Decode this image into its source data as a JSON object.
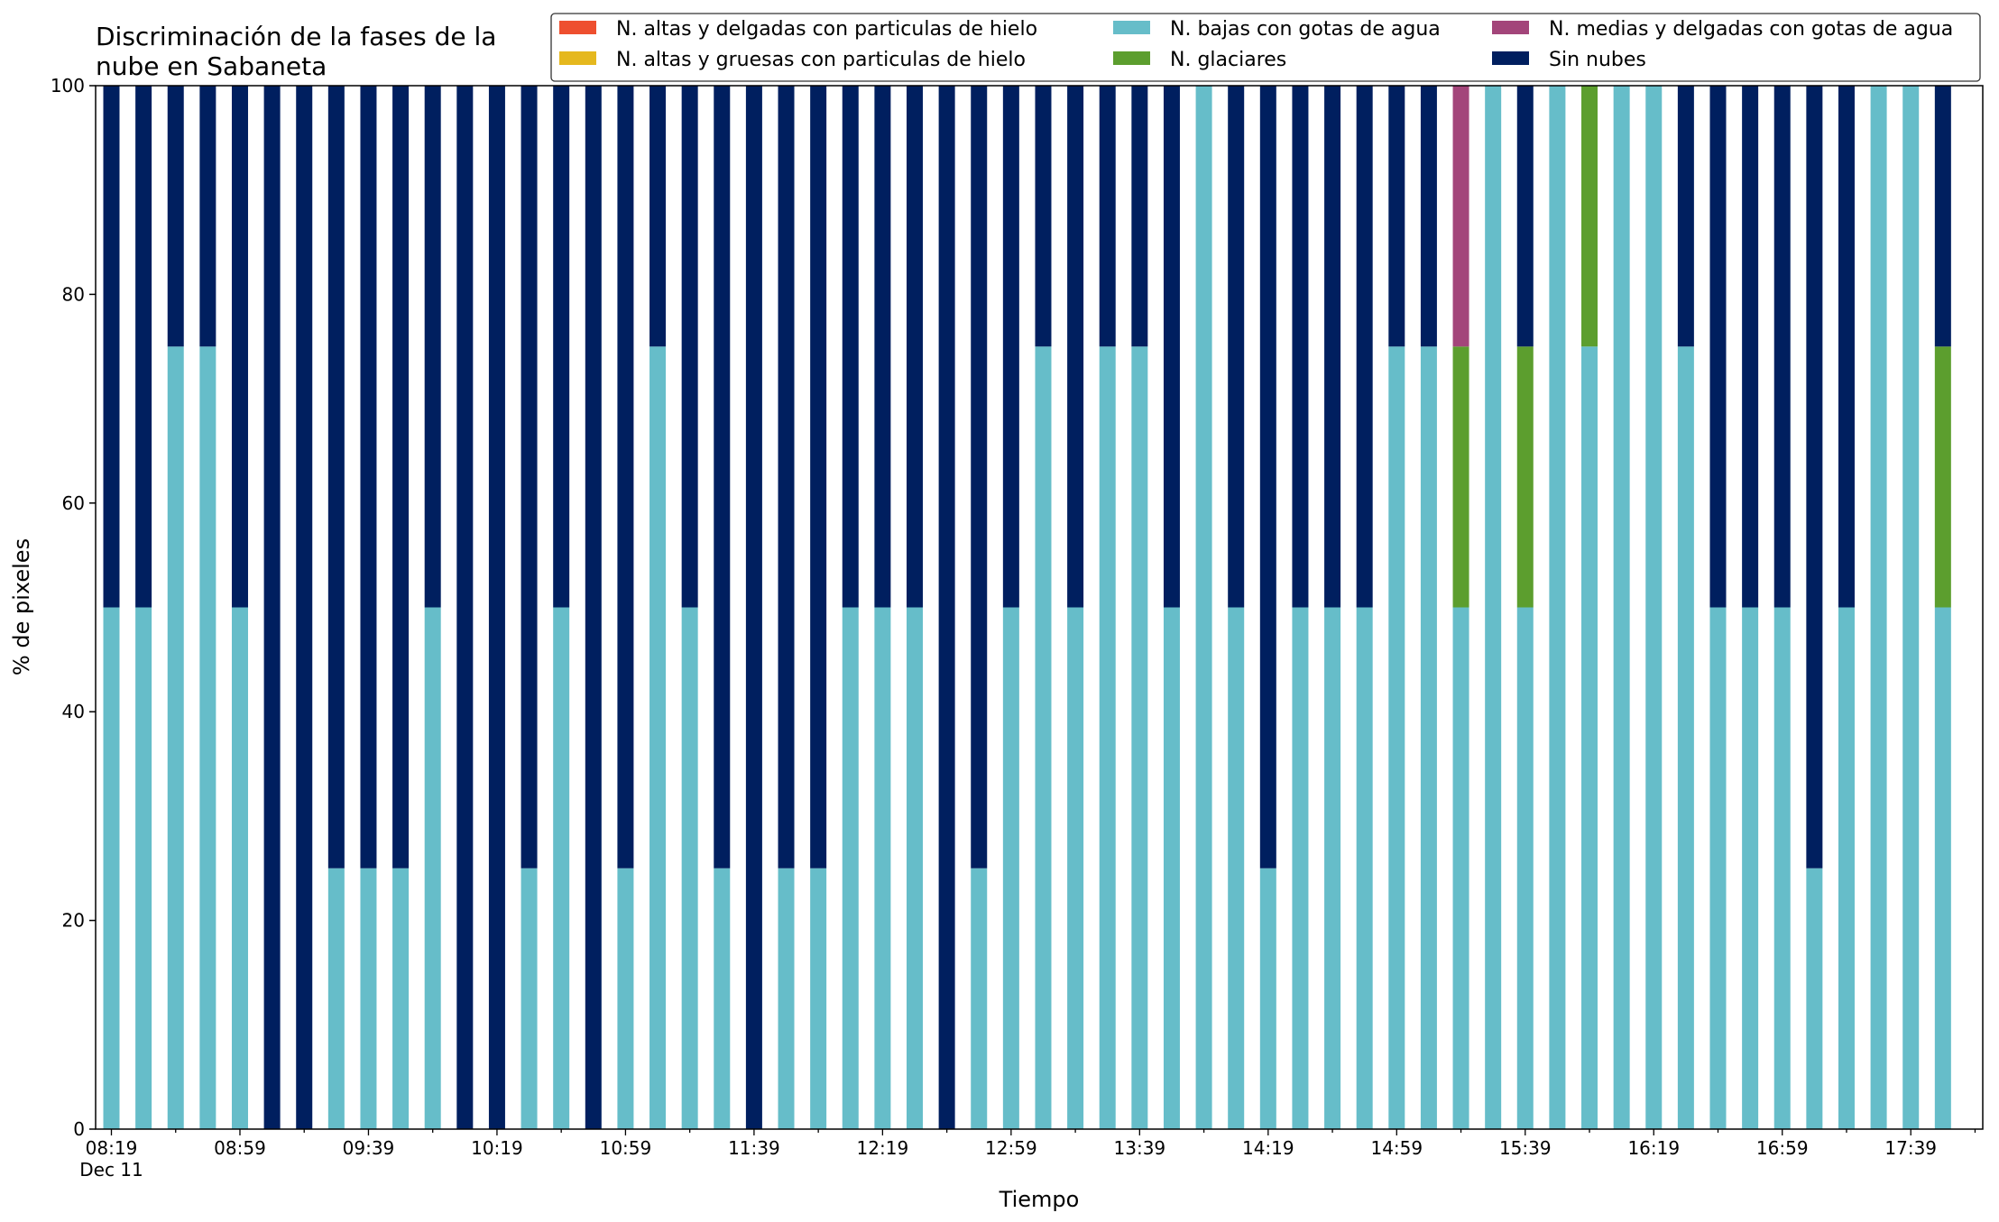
{
  "chart_data": {
    "type": "bar",
    "stacked": true,
    "title_lines": [
      "Discriminación de la fases de la",
      "nube en Sabaneta"
    ],
    "xlabel": "Tiempo",
    "ylabel": "% de pixeles",
    "ylim": [
      0,
      100
    ],
    "yticks": [
      0,
      20,
      40,
      60,
      80,
      100
    ],
    "grid": false,
    "legend_position": "top-right",
    "x_interval_minutes": 10,
    "x_start_time": "08:19",
    "x_date_label": "Dec 11",
    "x_tick_labels": [
      "08:19",
      "08:59",
      "09:39",
      "10:19",
      "10:59",
      "11:39",
      "12:19",
      "12:59",
      "13:39",
      "14:19",
      "14:59",
      "15:39",
      "16:19",
      "16:59",
      "17:39"
    ],
    "x_times": [
      "08:19",
      "08:29",
      "08:39",
      "08:49",
      "08:59",
      "09:09",
      "09:19",
      "09:29",
      "09:39",
      "09:49",
      "09:59",
      "10:09",
      "10:19",
      "10:29",
      "10:39",
      "10:49",
      "10:59",
      "11:09",
      "11:19",
      "11:29",
      "11:39",
      "11:49",
      "11:59",
      "12:09",
      "12:19",
      "12:29",
      "12:39",
      "12:49",
      "12:59",
      "13:09",
      "13:19",
      "13:29",
      "13:39",
      "13:49",
      "13:59",
      "14:09",
      "14:19",
      "14:29",
      "14:39",
      "14:49",
      "14:59",
      "15:09",
      "15:19",
      "15:29",
      "15:39",
      "15:49",
      "15:59",
      "16:09",
      "16:19",
      "16:29",
      "16:39",
      "16:49",
      "16:59",
      "17:09",
      "17:19",
      "17:29",
      "17:39",
      "17:49"
    ],
    "series": [
      {
        "name": "N. altas y delgadas con particulas de hielo",
        "color": "#ee4f2f",
        "values": [
          0,
          0,
          0,
          0,
          0,
          0,
          0,
          0,
          0,
          0,
          0,
          0,
          0,
          0,
          0,
          0,
          0,
          0,
          0,
          0,
          0,
          0,
          0,
          0,
          0,
          0,
          0,
          0,
          0,
          0,
          0,
          0,
          0,
          0,
          0,
          0,
          0,
          0,
          0,
          0,
          0,
          0,
          0,
          0,
          0,
          0,
          0,
          0,
          0,
          0,
          0,
          0,
          0,
          0,
          0,
          0,
          0,
          0
        ]
      },
      {
        "name": "N. altas y gruesas con particulas de hielo",
        "color": "#e5b81e",
        "values": [
          0,
          0,
          0,
          0,
          0,
          0,
          0,
          0,
          0,
          0,
          0,
          0,
          0,
          0,
          0,
          0,
          0,
          0,
          0,
          0,
          0,
          0,
          0,
          0,
          0,
          0,
          0,
          0,
          0,
          0,
          0,
          0,
          0,
          0,
          0,
          0,
          0,
          0,
          0,
          0,
          0,
          0,
          0,
          0,
          0,
          0,
          0,
          0,
          0,
          0,
          0,
          0,
          0,
          0,
          0,
          0,
          0,
          0
        ]
      },
      {
        "name": "N. bajas con gotas de agua",
        "color": "#66bdc9",
        "values": [
          50,
          50,
          75,
          75,
          50,
          0,
          0,
          25,
          25,
          25,
          50,
          0,
          0,
          25,
          50,
          0,
          25,
          75,
          50,
          25,
          0,
          25,
          25,
          50,
          50,
          50,
          0,
          25,
          50,
          75,
          50,
          75,
          75,
          50,
          100,
          50,
          25,
          50,
          50,
          50,
          75,
          75,
          50,
          100,
          50,
          100,
          75,
          100,
          100,
          75,
          50,
          50,
          50,
          25,
          50,
          100,
          100,
          50
        ]
      },
      {
        "name": "N. glaciares",
        "color": "#5c9e2e",
        "values": [
          0,
          0,
          0,
          0,
          0,
          0,
          0,
          0,
          0,
          0,
          0,
          0,
          0,
          0,
          0,
          0,
          0,
          0,
          0,
          0,
          0,
          0,
          0,
          0,
          0,
          0,
          0,
          0,
          0,
          0,
          0,
          0,
          0,
          0,
          0,
          0,
          0,
          0,
          0,
          0,
          0,
          0,
          25,
          0,
          25,
          0,
          25,
          0,
          0,
          0,
          0,
          0,
          0,
          0,
          0,
          0,
          0,
          25
        ]
      },
      {
        "name": "N. medias y delgadas con gotas de agua",
        "color": "#a3457a",
        "values": [
          0,
          0,
          0,
          0,
          0,
          0,
          0,
          0,
          0,
          0,
          0,
          0,
          0,
          0,
          0,
          0,
          0,
          0,
          0,
          0,
          0,
          0,
          0,
          0,
          0,
          0,
          0,
          0,
          0,
          0,
          0,
          0,
          0,
          0,
          0,
          0,
          0,
          0,
          0,
          0,
          0,
          0,
          25,
          0,
          0,
          0,
          0,
          0,
          0,
          0,
          0,
          0,
          0,
          0,
          0,
          0,
          0,
          0
        ]
      },
      {
        "name": "Sin nubes",
        "color": "#001f5f",
        "values": [
          50,
          50,
          25,
          25,
          50,
          100,
          100,
          75,
          75,
          75,
          50,
          100,
          100,
          75,
          50,
          100,
          75,
          25,
          50,
          75,
          100,
          75,
          75,
          50,
          50,
          50,
          100,
          75,
          50,
          25,
          50,
          25,
          25,
          50,
          0,
          50,
          75,
          50,
          50,
          50,
          25,
          25,
          0,
          0,
          25,
          0,
          0,
          0,
          0,
          25,
          50,
          50,
          50,
          75,
          50,
          0,
          0,
          25
        ]
      }
    ],
    "stack_order": [
      2,
      3,
      4,
      5,
      0,
      1
    ]
  }
}
